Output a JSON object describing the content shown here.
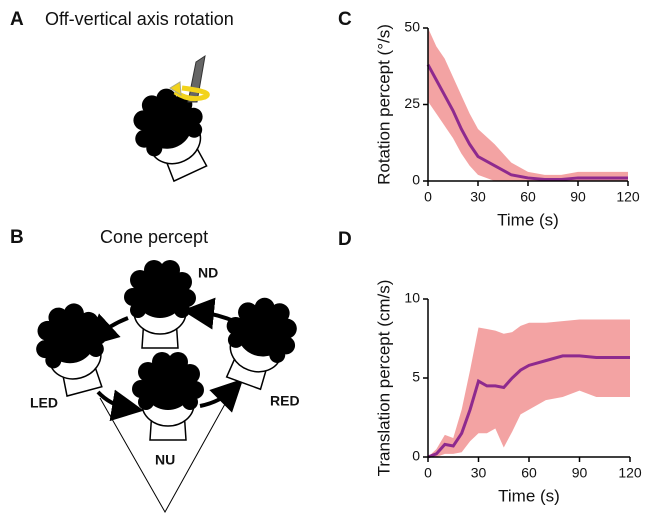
{
  "panels": {
    "a": {
      "letter": "A",
      "title": "Off-vertical axis rotation"
    },
    "b": {
      "letter": "B",
      "title": "Cone percept",
      "labels": {
        "nd": "ND",
        "led": "LED",
        "red": "RED",
        "nu": "NU"
      }
    }
  },
  "chart_data": [
    {
      "type": "line",
      "panel": "C",
      "xlabel": "Time (s)",
      "ylabel": "Rotation percept (°/s)",
      "x": [
        0,
        5,
        10,
        15,
        20,
        25,
        30,
        40,
        50,
        60,
        70,
        80,
        90,
        100,
        110,
        120
      ],
      "values": [
        38,
        33,
        28,
        23,
        17,
        12,
        8,
        5,
        2,
        1,
        0.5,
        0.5,
        1,
        1,
        1,
        1
      ],
      "upper": [
        50,
        44,
        40,
        34,
        28,
        22,
        17,
        12,
        6,
        3,
        2,
        2,
        3,
        3,
        3,
        3
      ],
      "lower": [
        26,
        22,
        18,
        14,
        9,
        5,
        2,
        0,
        0,
        0,
        0,
        0,
        0,
        0,
        0,
        0
      ],
      "color": "#8e2a8e",
      "band_color": "#f08c8c",
      "xlim": [
        0,
        120
      ],
      "xticks": [
        0,
        30,
        60,
        90,
        120
      ],
      "ylim": [
        0,
        50
      ],
      "yticks": [
        0,
        25,
        50
      ]
    },
    {
      "type": "line",
      "panel": "D",
      "xlabel": "Time (s)",
      "ylabel": "Translation percept (cm/s)",
      "x": [
        0,
        5,
        10,
        15,
        20,
        25,
        30,
        35,
        40,
        45,
        50,
        55,
        60,
        70,
        80,
        90,
        100,
        110,
        120
      ],
      "values": [
        0,
        0.2,
        0.8,
        0.7,
        1.5,
        3,
        4.8,
        4.5,
        4.5,
        4.4,
        5,
        5.5,
        5.8,
        6.1,
        6.4,
        6.4,
        6.3,
        6.3,
        6.3
      ],
      "upper": [
        0,
        0.5,
        1.4,
        1.2,
        3,
        5.5,
        8.2,
        8.1,
        8,
        7.8,
        7.9,
        8.3,
        8.5,
        8.5,
        8.6,
        8.7,
        8.7,
        8.7,
        8.7
      ],
      "lower": [
        0,
        0,
        0.2,
        0.2,
        0.3,
        1,
        1.5,
        1.5,
        1.8,
        0.6,
        1.6,
        2.7,
        3,
        3.6,
        3.8,
        4.2,
        3.8,
        3.8,
        3.8
      ],
      "color": "#8e2a8e",
      "band_color": "#f08c8c",
      "xlim": [
        0,
        120
      ],
      "xticks": [
        0,
        30,
        60,
        90,
        120
      ],
      "ylim": [
        0,
        10
      ],
      "yticks": [
        0,
        5,
        10
      ]
    }
  ]
}
